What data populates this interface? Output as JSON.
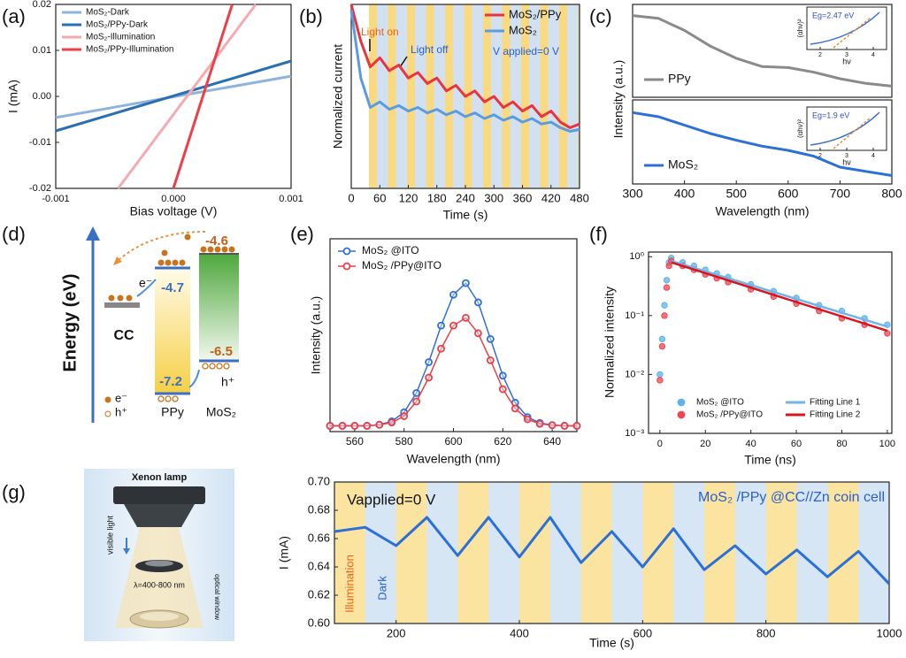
{
  "panel_labels": [
    "(a)",
    "(b)",
    "(c)",
    "(d)",
    "(e)",
    "(f)",
    "(g)"
  ],
  "chart_data": [
    {
      "type": "line",
      "xlabel": "Bias voltage (V)",
      "ylabel": "I (mA)",
      "xlim": [
        -0.001,
        0.001
      ],
      "ylim": [
        -0.02,
        0.02
      ],
      "xticks": [
        -0.001,
        {
          "value": 0,
          "label": "0.000"
        },
        0.001
      ],
      "yticks": [
        -0.02,
        -0.01,
        {
          "value": 0,
          "label": "0.00"
        },
        0.01,
        0.02
      ],
      "legend": "upper left",
      "series": [
        {
          "name": "MoS₂-Dark",
          "color": "#8fb4dc",
          "x": [
            -0.001,
            0.001
          ],
          "values": [
            -0.0046,
            0.0044
          ]
        },
        {
          "name": "MoS₂/PPy-Dark",
          "color": "#2a6fb0",
          "x": [
            -0.001,
            0.001
          ],
          "values": [
            -0.0075,
            0.0077
          ]
        },
        {
          "name": "MoS₂-Illumination",
          "color": "#f4aab0",
          "x": [
            -0.00047,
            0.0007
          ],
          "values": [
            -0.02,
            0.02
          ]
        },
        {
          "name": "MoS₂/PPy-Illumination",
          "color": "#ee3e46",
          "x": [
            0,
            0.0005
          ],
          "values": [
            -0.02,
            0.02
          ]
        }
      ]
    },
    {
      "type": "line",
      "xlabel": "Time (s)",
      "ylabel": "Normalized current",
      "xlim": [
        0,
        480
      ],
      "ylim": [
        0,
        1
      ],
      "xticks": [
        0,
        60,
        120,
        180,
        240,
        300,
        360,
        420,
        480
      ],
      "legend": "upper right",
      "annotations": [
        "Light on",
        "Light off",
        "V applied=0 V"
      ],
      "x": [
        0,
        20,
        40,
        60,
        80,
        100,
        120,
        140,
        160,
        180,
        200,
        220,
        240,
        260,
        280,
        300,
        320,
        340,
        360,
        380,
        400,
        420,
        440,
        460,
        480
      ],
      "series": [
        {
          "name": "MoS₂/PPy",
          "color": "#e8343c",
          "values": [
            1.0,
            0.8,
            0.66,
            0.71,
            0.64,
            0.67,
            0.6,
            0.63,
            0.57,
            0.6,
            0.53,
            0.56,
            0.5,
            0.53,
            0.47,
            0.5,
            0.44,
            0.47,
            0.42,
            0.45,
            0.39,
            0.42,
            0.36,
            0.33,
            0.35
          ]
        },
        {
          "name": "MoS₂",
          "color": "#5b9be0",
          "values": [
            0.97,
            0.6,
            0.44,
            0.47,
            0.43,
            0.45,
            0.42,
            0.44,
            0.41,
            0.43,
            0.4,
            0.42,
            0.39,
            0.41,
            0.38,
            0.4,
            0.37,
            0.39,
            0.36,
            0.38,
            0.35,
            0.36,
            0.33,
            0.31,
            0.32
          ]
        }
      ]
    },
    {
      "type": "line",
      "ylabel": "Intensity (a.u.)",
      "xlim": [
        300,
        800
      ],
      "ylim": [
        0,
        1
      ],
      "legend": "lower left",
      "x": [
        300,
        350,
        400,
        450,
        500,
        550,
        600,
        650,
        700,
        750,
        800
      ],
      "series": [
        {
          "name": "PPy",
          "color": "#8a8a8a",
          "values": [
            0.88,
            0.85,
            0.72,
            0.55,
            0.42,
            0.33,
            0.32,
            0.27,
            0.2,
            0.15,
            0.12
          ]
        }
      ],
      "inset": {
        "ylabel": "(αhν)²",
        "xlabel": "hν",
        "note": "Eg=2.47 eV",
        "xlim": [
          1.5,
          4.5
        ],
        "xticks": [
          2,
          3,
          4
        ]
      }
    },
    {
      "type": "line",
      "xlabel": "Wavelength (nm)",
      "xlim": [
        300,
        800
      ],
      "ylim": [
        0,
        1
      ],
      "legend": "lower left",
      "xticks": [
        300,
        400,
        500,
        600,
        700,
        800
      ],
      "x": [
        300,
        350,
        400,
        450,
        500,
        550,
        600,
        650,
        700,
        750,
        800
      ],
      "series": [
        {
          "name": "MoS₂",
          "color": "#2c6fd6",
          "values": [
            0.85,
            0.8,
            0.7,
            0.6,
            0.52,
            0.45,
            0.4,
            0.33,
            0.2,
            0.15,
            0.1
          ]
        }
      ],
      "inset": {
        "ylabel": "(αhν)²",
        "xlabel": "hν",
        "note": "Eg=1.9 eV",
        "xlim": [
          1.5,
          4.5
        ],
        "xticks": [
          2,
          3,
          4
        ]
      }
    },
    {
      "type": "line",
      "xlabel": "Wavelength (nm)",
      "ylabel": "Intensity (a.u.)",
      "xlim": [
        550,
        650
      ],
      "ylim": [
        0,
        1
      ],
      "legend": "upper left",
      "xticks": [
        560,
        580,
        600,
        620,
        640
      ],
      "x": [
        550,
        555,
        560,
        565,
        570,
        575,
        580,
        585,
        590,
        595,
        600,
        605,
        610,
        615,
        620,
        625,
        630,
        635,
        640,
        645,
        650
      ],
      "series": [
        {
          "name": "MoS₂ @ITO",
          "color": "#2f6fd6",
          "marker": true,
          "values": [
            0.03,
            0.03,
            0.03,
            0.03,
            0.036,
            0.053,
            0.1,
            0.2,
            0.36,
            0.55,
            0.71,
            0.77,
            0.67,
            0.48,
            0.29,
            0.15,
            0.075,
            0.045,
            0.034,
            0.03,
            0.03
          ]
        },
        {
          "name": "MoS₂ /PPy@ITO",
          "color": "#e8404a",
          "marker": true,
          "values": [
            0.03,
            0.03,
            0.03,
            0.03,
            0.035,
            0.047,
            0.08,
            0.156,
            0.28,
            0.43,
            0.55,
            0.59,
            0.51,
            0.37,
            0.22,
            0.12,
            0.064,
            0.04,
            0.033,
            0.03,
            0.03
          ]
        }
      ]
    },
    {
      "type": "scatter",
      "xlabel": "Time (ns)",
      "ylabel": "Normalized intensity",
      "xlim": [
        -5,
        102
      ],
      "ylim": [
        0.001,
        1.2
      ],
      "log_y": true,
      "xticks": [
        0,
        20,
        40,
        60,
        80,
        100
      ],
      "yticks": [
        {
          "value": 0.001,
          "label": "10⁻³"
        },
        {
          "value": 0.01,
          "label": "10⁻²"
        },
        {
          "value": 0.1,
          "label": "10⁻¹"
        },
        {
          "value": 1,
          "label": "10⁰"
        }
      ],
      "legend": "lower right",
      "legend_columns": 2,
      "series": [
        {
          "name": "MoS₂ @ITO",
          "color": "#5fb3e8",
          "kind": "scatter",
          "x": [
            0,
            1,
            2,
            3,
            4,
            5,
            10,
            15,
            20,
            25,
            30,
            40,
            50,
            60,
            70,
            80,
            90,
            100
          ],
          "values": [
            0.01,
            0.04,
            0.15,
            0.4,
            0.8,
            0.95,
            0.8,
            0.7,
            0.6,
            0.52,
            0.45,
            0.34,
            0.26,
            0.2,
            0.15,
            0.12,
            0.09,
            0.07
          ]
        },
        {
          "name": "MoS₂ /PPy@ITO",
          "color": "#ee4650",
          "kind": "scatter",
          "x": [
            0,
            1,
            2,
            3,
            4,
            5,
            10,
            15,
            20,
            25,
            30,
            40,
            50,
            60,
            70,
            80,
            90,
            100
          ],
          "values": [
            0.008,
            0.03,
            0.1,
            0.3,
            0.7,
            0.85,
            0.7,
            0.6,
            0.5,
            0.43,
            0.37,
            0.28,
            0.21,
            0.16,
            0.12,
            0.09,
            0.07,
            0.05
          ]
        },
        {
          "name": "Fitting Line 1",
          "color": "#6fb4ea",
          "kind": "line",
          "x": [
            5,
            100
          ],
          "values": [
            0.85,
            0.065
          ]
        },
        {
          "name": "Fitting Line 2",
          "color": "#d8141e",
          "kind": "line",
          "x": [
            5,
            100
          ],
          "values": [
            0.8,
            0.055
          ]
        }
      ]
    },
    {
      "type": "line",
      "xlabel": "Time (s)",
      "ylabel": "I (mA)",
      "xlim": [
        100,
        1000
      ],
      "ylim": [
        0.6,
        0.7
      ],
      "xticks": [
        200,
        400,
        600,
        800,
        1000
      ],
      "yticks": [
        {
          "value": 0.6,
          "label": "0.60"
        },
        0.62,
        0.64,
        0.66,
        0.68,
        {
          "value": 0.7,
          "label": "0.70"
        }
      ],
      "annotations": [
        "Vapplied=0 V",
        "MoS₂ /PPy @CC//Zn coin cell",
        "Illumination",
        "Dark"
      ],
      "x": [
        100,
        150,
        200,
        250,
        300,
        350,
        400,
        450,
        500,
        550,
        600,
        650,
        700,
        750,
        800,
        850,
        900,
        950,
        1000
      ],
      "series": [
        {
          "color": "#2b6fd8",
          "values": [
            0.665,
            0.668,
            0.655,
            0.675,
            0.648,
            0.675,
            0.647,
            0.675,
            0.643,
            0.665,
            0.64,
            0.667,
            0.638,
            0.655,
            0.635,
            0.652,
            0.633,
            0.651,
            0.628
          ]
        }
      ]
    }
  ],
  "diagram": {
    "axis_label": "Energy (eV)",
    "electrode": "CC",
    "materials": [
      {
        "name": "PPy",
        "top": "-4.7",
        "bottom": "-7.2"
      },
      {
        "name": "MoS₂",
        "top": "-4.6",
        "bottom": "-6.5"
      }
    ],
    "carriers": [
      "e⁻",
      "h⁺"
    ],
    "legend": [
      "e⁻",
      "h⁺"
    ]
  },
  "illustration": {
    "lamp": "Xenon lamp",
    "light": "visible light",
    "range": "λ=400-800 nm",
    "window": "optical window"
  }
}
